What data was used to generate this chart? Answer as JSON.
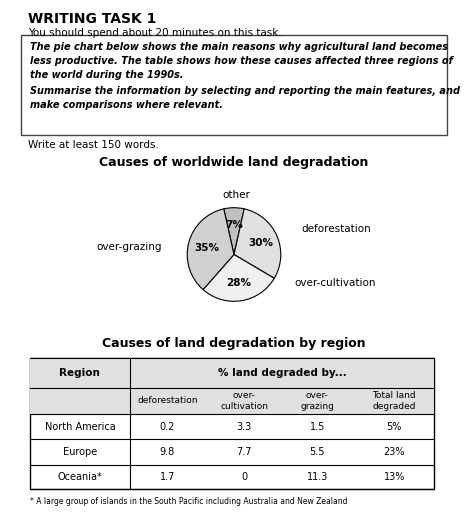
{
  "title_main": "WRITING TASK 1",
  "subtitle": "You should spend about 20 minutes on this task.",
  "para1": "The pie chart below shows the main reasons why agricultural land becomes\nless productive. The table shows how these causes affected three regions of\nthe world during the 1990s.",
  "para2": "Summarise the information by selecting and reporting the main features, and\nmake comparisons where relevant.",
  "write_text": "Write at least 150 words.",
  "pie_title": "Causes of worldwide land degradation",
  "pie_sizes": [
    7,
    30,
    28,
    35
  ],
  "pie_colors": [
    "#c0c0c0",
    "#e0e0e0",
    "#f0f0f0",
    "#d0d0d0"
  ],
  "table_title": "Causes of land degradation by region",
  "table_sub_headers": [
    "deforestation",
    "over-\ncultivation",
    "over-\ngrazing",
    "Total land\ndegraded"
  ],
  "table_rows": [
    [
      "North America",
      "0.2",
      "3.3",
      "1.5",
      "5%"
    ],
    [
      "Europe",
      "9.8",
      "7.7",
      "5.5",
      "23%"
    ],
    [
      "Oceania*",
      "1.7",
      "0",
      "11.3",
      "13%"
    ]
  ],
  "footnote": "* A large group of islands in the South Pacific including Australia and New Zealand",
  "bg_color": "#ffffff",
  "text_color": "#000000"
}
